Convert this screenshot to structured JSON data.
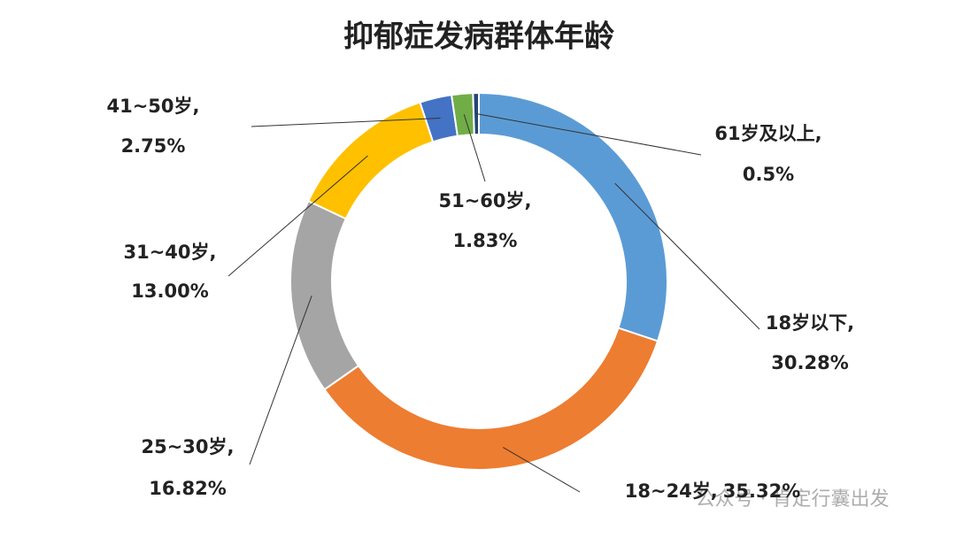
{
  "chart_data": {
    "type": "donut",
    "title": "抑郁症发病群体年龄",
    "categories": [
      "18岁以下,",
      "18~24岁,",
      "25~30岁,",
      "31~40岁,",
      "41~50岁,",
      "51~60岁,",
      "61岁及以上,"
    ],
    "values": [
      30.28,
      35.32,
      16.82,
      13.0,
      2.75,
      1.83,
      0.5
    ],
    "value_labels": [
      "30.28%",
      "35.32%",
      "16.82%",
      "13.00%",
      "2.75%",
      "1.83%",
      "0.5%"
    ],
    "colors": [
      "#5b9bd5",
      "#ed7d31",
      "#a5a5a5",
      "#ffc000",
      "#4472c4",
      "#70ad47",
      "#264478"
    ],
    "watermark": "公众号 · 肯定行囊出发"
  }
}
